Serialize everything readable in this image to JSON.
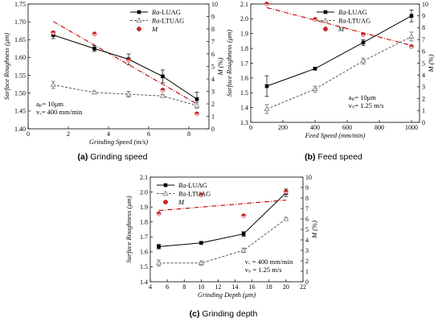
{
  "chart_data": [
    {
      "type": "line",
      "caption_letter": "(a)",
      "caption_text": "Grinding speed",
      "xlabel": "Grinding Speed (m/s)",
      "ylabel": "Surface Roughness (μm)",
      "ylabel_right": "M (%)",
      "xlim": [
        0,
        9
      ],
      "ylim": [
        1.4,
        1.75
      ],
      "ylim_right": [
        0,
        10
      ],
      "xticks": [
        "0",
        "2",
        "4",
        "6",
        "8"
      ],
      "yticks": [
        "1.40",
        "1.45",
        "1.50",
        "1.55",
        "1.60",
        "1.65",
        "1.70",
        "1.75"
      ],
      "yticks_right": [
        "0",
        "1",
        "2",
        "3",
        "4",
        "5",
        "6",
        "7",
        "8",
        "9",
        "10"
      ],
      "legend": [
        "Ra-LUAG",
        "Ra-LTUAG",
        "M"
      ],
      "notes": [
        "aₚ= 10μm",
        "vᵥ= 400 mm/min"
      ],
      "series": [
        {
          "name": "Ra-LUAG",
          "axis": "left",
          "x": [
            1.25,
            3.3,
            5.0,
            6.7,
            8.4
          ],
          "values": [
            1.663,
            1.625,
            1.595,
            1.547,
            1.483
          ],
          "err": [
            0.01,
            0.008,
            0.015,
            0.018,
            0.02
          ]
        },
        {
          "name": "Ra-LTUAG",
          "axis": "left",
          "x": [
            1.25,
            3.3,
            5.0,
            6.7,
            8.4
          ],
          "values": [
            1.523,
            1.502,
            1.497,
            1.492,
            1.465
          ],
          "err": [
            0.01,
            0.004,
            0.008,
            0.004,
            0.008
          ]
        },
        {
          "name": "M",
          "axis": "right",
          "x": [
            1.25,
            3.3,
            5.0,
            6.7,
            8.4
          ],
          "values": [
            7.7,
            7.6,
            5.5,
            3.1,
            1.2
          ]
        }
      ],
      "fit_line": {
        "axis": "right",
        "x": [
          1.25,
          8.4
        ],
        "values": [
          8.6,
          2.0
        ]
      }
    },
    {
      "type": "line",
      "caption_letter": "(b)",
      "caption_text": "Feed speed",
      "xlabel": "Feed Speed (mm/min)",
      "ylabel": "Surface Roughness (μm)",
      "ylabel_right": "M (%)",
      "xlim": [
        0,
        1050
      ],
      "ylim": [
        1.3,
        2.1
      ],
      "ylim_right": [
        0,
        10
      ],
      "xticks": [
        "0",
        "200",
        "400",
        "600",
        "800",
        "1000"
      ],
      "yticks": [
        "1.3",
        "1.4",
        "1.5",
        "1.6",
        "1.7",
        "1.8",
        "1.9",
        "2.0",
        "2.1"
      ],
      "yticks_right": [
        "0",
        "1",
        "2",
        "3",
        "4",
        "5",
        "6",
        "7",
        "8",
        "9",
        "10"
      ],
      "legend": [
        "Ra-LUAG",
        "Ra-LTUAG",
        "M"
      ],
      "notes": [
        "aₚ= 10μm",
        "vₛ= 1.25 m/s"
      ],
      "series": [
        {
          "name": "Ra-LUAG",
          "axis": "left",
          "x": [
            100,
            400,
            700,
            1000
          ],
          "values": [
            1.545,
            1.663,
            1.84,
            2.02
          ],
          "err": [
            0.07,
            0.008,
            0.02,
            0.04
          ]
        },
        {
          "name": "Ra-LTUAG",
          "axis": "left",
          "x": [
            100,
            400,
            700,
            1000
          ],
          "values": [
            1.39,
            1.525,
            1.715,
            1.88
          ],
          "err": [
            0.03,
            0.02,
            0.02,
            0.03
          ]
        },
        {
          "name": "M",
          "axis": "right",
          "x": [
            100,
            400,
            700,
            1000
          ],
          "values": [
            10.0,
            8.7,
            7.4,
            6.4
          ]
        }
      ],
      "fit_line": {
        "axis": "right",
        "x": [
          100,
          1000
        ],
        "values": [
          9.7,
          6.5
        ]
      }
    },
    {
      "type": "line",
      "caption_letter": "(c)",
      "caption_text": "Grinding depth",
      "xlabel": "Grinding Depth (μm)",
      "ylabel": "Surface Roughness (μm)",
      "ylabel_right": "M (%)",
      "xlim": [
        4,
        22
      ],
      "ylim": [
        1.4,
        2.1
      ],
      "ylim_right": [
        0,
        10
      ],
      "xticks": [
        "4",
        "6",
        "8",
        "10",
        "12",
        "14",
        "16",
        "18",
        "20",
        "22"
      ],
      "yticks": [
        "1.4",
        "1.5",
        "1.6",
        "1.7",
        "1.8",
        "1.9",
        "2.0",
        "2.1"
      ],
      "yticks_right": [
        "0",
        "1",
        "2",
        "3",
        "4",
        "5",
        "6",
        "7",
        "8",
        "9",
        "10"
      ],
      "legend": [
        "Ra-LUAG",
        "Ra-LTUAG",
        "M"
      ],
      "notes": [
        "vᵥ = 400 mm/min",
        "vₛ = 1.25 m/s"
      ],
      "series": [
        {
          "name": "Ra-LUAG",
          "axis": "left",
          "x": [
            5,
            10,
            15,
            20
          ],
          "values": [
            1.635,
            1.66,
            1.72,
            1.995
          ],
          "err": [
            0.015,
            0.008,
            0.015,
            0.025
          ]
        },
        {
          "name": "Ra-LTUAG",
          "axis": "left",
          "x": [
            5,
            10,
            15,
            20
          ],
          "values": [
            1.525,
            1.525,
            1.61,
            1.82
          ],
          "err": [
            0.02,
            0.015,
            0.015,
            0.01
          ]
        },
        {
          "name": "M",
          "axis": "right",
          "x": [
            5,
            10,
            15,
            20
          ],
          "values": [
            6.5,
            8.3,
            6.3,
            8.6
          ]
        }
      ],
      "fit_line": {
        "axis": "right",
        "x": [
          5,
          20
        ],
        "values": [
          6.8,
          7.8
        ]
      }
    }
  ]
}
